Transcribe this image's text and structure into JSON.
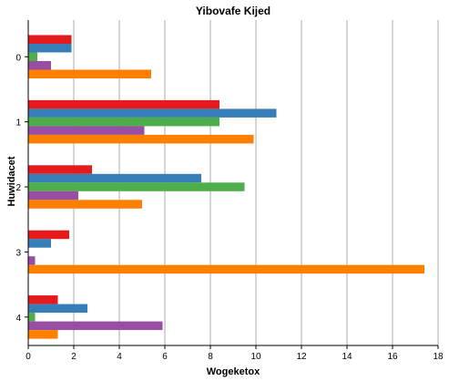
{
  "chart_data": {
    "type": "bar",
    "orientation": "horizontal",
    "title": "Yibovafe Kijed",
    "xlabel": "Wogeketox",
    "ylabel": "Huwidacet",
    "categories": [
      "0",
      "1",
      "2",
      "3",
      "4"
    ],
    "xlim": [
      0,
      18
    ],
    "xticks": [
      0,
      2,
      4,
      6,
      8,
      10,
      12,
      14,
      16,
      18
    ],
    "grid": "vertical",
    "legend": "none",
    "series": [
      {
        "color": "#e41a1c",
        "values": [
          1.9,
          8.4,
          2.8,
          1.8,
          1.3
        ]
      },
      {
        "color": "#377eb8",
        "values": [
          1.9,
          10.9,
          7.6,
          1.0,
          2.6
        ]
      },
      {
        "color": "#4daf4a",
        "values": [
          0.4,
          8.4,
          9.5,
          0.0,
          0.3
        ]
      },
      {
        "color": "#984ea3",
        "values": [
          1.0,
          5.1,
          2.2,
          0.3,
          5.9
        ]
      },
      {
        "color": "#ff7f00",
        "values": [
          5.4,
          9.9,
          5.0,
          17.4,
          1.3
        ]
      }
    ]
  }
}
